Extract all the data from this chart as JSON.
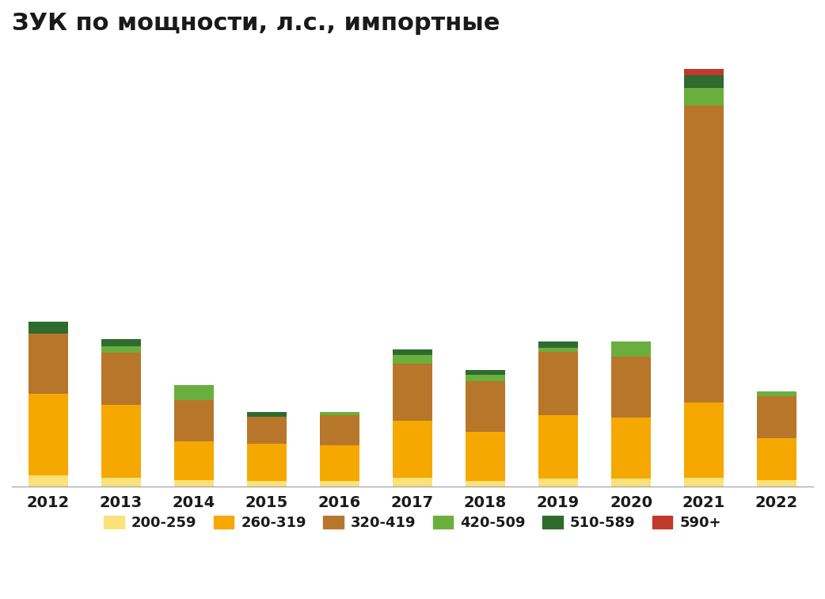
{
  "title": "ЗУК по мощности, л.с., импортные",
  "years": [
    2012,
    2013,
    2014,
    2015,
    2016,
    2017,
    2018,
    2019,
    2020,
    2021,
    2022
  ],
  "categories": [
    "200-259",
    "260-319",
    "320-419",
    "420-509",
    "510-589",
    "590+"
  ],
  "colors": [
    "#FAE17A",
    "#F5A800",
    "#B8762A",
    "#6AAF3D",
    "#2E6B2E",
    "#C0392B"
  ],
  "data": {
    "200-259": [
      50,
      40,
      30,
      25,
      25,
      40,
      25,
      35,
      35,
      40,
      30
    ],
    "260-319": [
      380,
      340,
      180,
      175,
      165,
      265,
      230,
      295,
      285,
      350,
      195
    ],
    "320-419": [
      280,
      240,
      190,
      125,
      140,
      265,
      235,
      295,
      285,
      1380,
      195
    ],
    "420-509": [
      0,
      30,
      70,
      0,
      15,
      40,
      30,
      20,
      70,
      80,
      20
    ],
    "510-589": [
      55,
      35,
      0,
      20,
      0,
      25,
      20,
      30,
      0,
      60,
      0
    ],
    "590+": [
      0,
      0,
      0,
      0,
      0,
      0,
      0,
      0,
      0,
      30,
      0
    ]
  },
  "background_color": "#FFFFFF",
  "title_fontsize": 22,
  "legend_fontsize": 13,
  "tick_fontsize": 14
}
